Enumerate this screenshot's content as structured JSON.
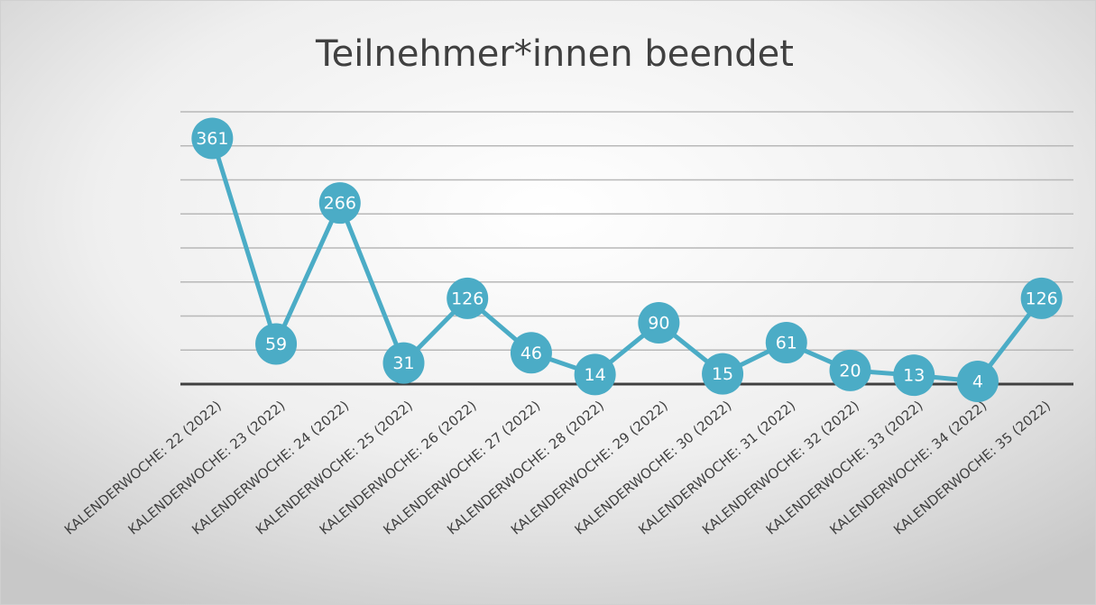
{
  "chart_data": {
    "type": "line",
    "title": "Teilnehmer*innen beendet",
    "categories": [
      "KALENDERWOCHE: 22 (2022)",
      "KALENDERWOCHE: 23 (2022)",
      "KALENDERWOCHE: 24 (2022)",
      "KALENDERWOCHE: 25 (2022)",
      "KALENDERWOCHE: 26 (2022)",
      "KALENDERWOCHE: 27 (2022)",
      "KALENDERWOCHE: 28 (2022)",
      "KALENDERWOCHE: 29 (2022)",
      "KALENDERWOCHE: 30 (2022)",
      "KALENDERWOCHE: 31 (2022)",
      "KALENDERWOCHE: 32 (2022)",
      "KALENDERWOCHE: 33 (2022)",
      "KALENDERWOCHE: 34 (2022)",
      "KALENDERWOCHE: 35 (2022)"
    ],
    "values": [
      361,
      59,
      266,
      31,
      126,
      46,
      14,
      90,
      15,
      61,
      20,
      13,
      4,
      126
    ],
    "color": "#4bacc6",
    "ylim": [
      0,
      400
    ],
    "yticks": [
      0,
      50,
      100,
      150,
      200,
      250,
      300,
      350,
      400
    ],
    "grid": true
  }
}
